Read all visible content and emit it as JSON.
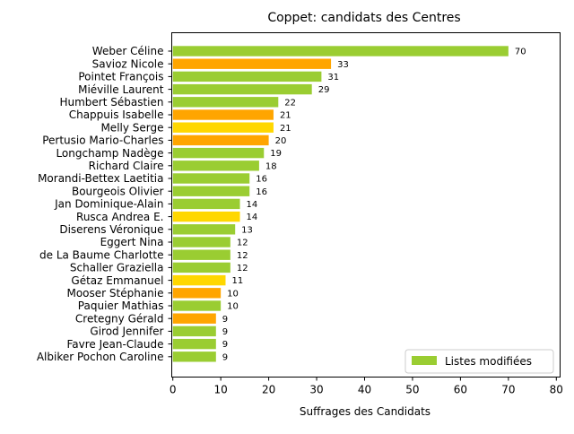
{
  "chart_data": {
    "type": "bar",
    "orientation": "horizontal",
    "title": "Coppet: candidats des Centres",
    "xlabel": "Suffrages des Candidats",
    "ylabel": "",
    "xlim": [
      0,
      80
    ],
    "xticks": [
      0,
      10,
      20,
      30,
      40,
      50,
      60,
      70,
      80
    ],
    "grid": false,
    "legend": {
      "position": "bottom-right",
      "entries": [
        {
          "label": "Listes modifiées",
          "color": "#9acd32"
        }
      ]
    },
    "bars": [
      {
        "name": "Weber Céline",
        "value": 70,
        "color": "#9acd32"
      },
      {
        "name": "Savioz Nicole",
        "value": 33,
        "color": "#ffa500"
      },
      {
        "name": "Pointet François",
        "value": 31,
        "color": "#9acd32"
      },
      {
        "name": "Miéville Laurent",
        "value": 29,
        "color": "#9acd32"
      },
      {
        "name": "Humbert Sébastien",
        "value": 22,
        "color": "#9acd32"
      },
      {
        "name": "Chappuis Isabelle",
        "value": 21,
        "color": "#ffa500"
      },
      {
        "name": "Melly Serge",
        "value": 21,
        "color": "#ffd700"
      },
      {
        "name": "Pertusio Mario-Charles",
        "value": 20,
        "color": "#ffa500"
      },
      {
        "name": "Longchamp Nadège",
        "value": 19,
        "color": "#9acd32"
      },
      {
        "name": "Richard Claire",
        "value": 18,
        "color": "#9acd32"
      },
      {
        "name": "Morandi-Bettex Laetitia",
        "value": 16,
        "color": "#9acd32"
      },
      {
        "name": "Bourgeois Olivier",
        "value": 16,
        "color": "#9acd32"
      },
      {
        "name": "Jan Dominique-Alain",
        "value": 14,
        "color": "#9acd32"
      },
      {
        "name": "Rusca Andrea E.",
        "value": 14,
        "color": "#ffd700"
      },
      {
        "name": "Diserens Véronique",
        "value": 13,
        "color": "#9acd32"
      },
      {
        "name": "Eggert Nina",
        "value": 12,
        "color": "#9acd32"
      },
      {
        "name": "de La Baume Charlotte",
        "value": 12,
        "color": "#9acd32"
      },
      {
        "name": "Schaller Graziella",
        "value": 12,
        "color": "#9acd32"
      },
      {
        "name": "Gétaz Emmanuel",
        "value": 11,
        "color": "#ffd700"
      },
      {
        "name": "Mooser Stéphanie",
        "value": 10,
        "color": "#ffa500"
      },
      {
        "name": "Paquier Mathias",
        "value": 10,
        "color": "#9acd32"
      },
      {
        "name": "Cretegny Gérald",
        "value": 9,
        "color": "#ffa500"
      },
      {
        "name": "Girod Jennifer",
        "value": 9,
        "color": "#9acd32"
      },
      {
        "name": "Favre Jean-Claude",
        "value": 9,
        "color": "#9acd32"
      },
      {
        "name": "Albiker Pochon Caroline",
        "value": 9,
        "color": "#9acd32"
      }
    ]
  }
}
